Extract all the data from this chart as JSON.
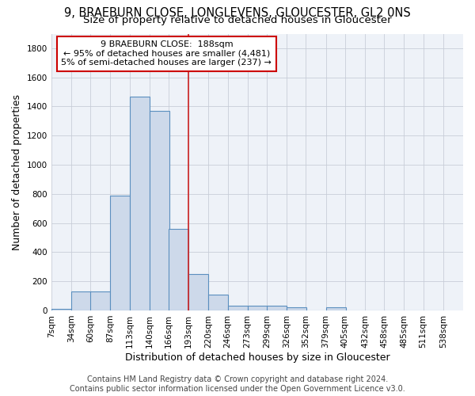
{
  "title": "9, BRAEBURN CLOSE, LONGLEVENS, GLOUCESTER, GL2 0NS",
  "subtitle": "Size of property relative to detached houses in Gloucester",
  "xlabel": "Distribution of detached houses by size in Gloucester",
  "ylabel": "Number of detached properties",
  "bar_left_edges": [
    7,
    34,
    60,
    87,
    113,
    140,
    166,
    193,
    220,
    246,
    273,
    299,
    326,
    352,
    379,
    405,
    432,
    458,
    485,
    511
  ],
  "bar_heights": [
    10,
    130,
    130,
    790,
    1470,
    1370,
    560,
    250,
    110,
    35,
    30,
    30,
    20,
    0,
    20,
    0,
    0,
    0,
    0,
    0
  ],
  "bin_width": 27,
  "bar_color": "#cdd9ea",
  "bar_edge_color": "#5b8fbf",
  "property_line_x": 193,
  "property_line_color": "#cc2222",
  "annotation_text": "9 BRAEBURN CLOSE:  188sqm\n← 95% of detached houses are smaller (4,481)\n5% of semi-detached houses are larger (237) →",
  "annotation_box_color": "#cc0000",
  "ylim": [
    0,
    1900
  ],
  "yticks": [
    0,
    200,
    400,
    600,
    800,
    1000,
    1200,
    1400,
    1600,
    1800
  ],
  "tick_labels": [
    "7sqm",
    "34sqm",
    "60sqm",
    "87sqm",
    "113sqm",
    "140sqm",
    "166sqm",
    "193sqm",
    "220sqm",
    "246sqm",
    "273sqm",
    "299sqm",
    "326sqm",
    "352sqm",
    "379sqm",
    "405sqm",
    "432sqm",
    "458sqm",
    "485sqm",
    "511sqm",
    "538sqm"
  ],
  "tick_positions": [
    7,
    34,
    60,
    87,
    113,
    140,
    166,
    193,
    220,
    246,
    273,
    299,
    326,
    352,
    379,
    405,
    432,
    458,
    485,
    511,
    538
  ],
  "footer_text": "Contains HM Land Registry data © Crown copyright and database right 2024.\nContains public sector information licensed under the Open Government Licence v3.0.",
  "background_color": "#eef2f8",
  "grid_color": "#c8cdd8",
  "title_fontsize": 10.5,
  "subtitle_fontsize": 9.5,
  "axis_label_fontsize": 9,
  "tick_fontsize": 7.5,
  "footer_fontsize": 7,
  "annotation_fontsize": 8
}
